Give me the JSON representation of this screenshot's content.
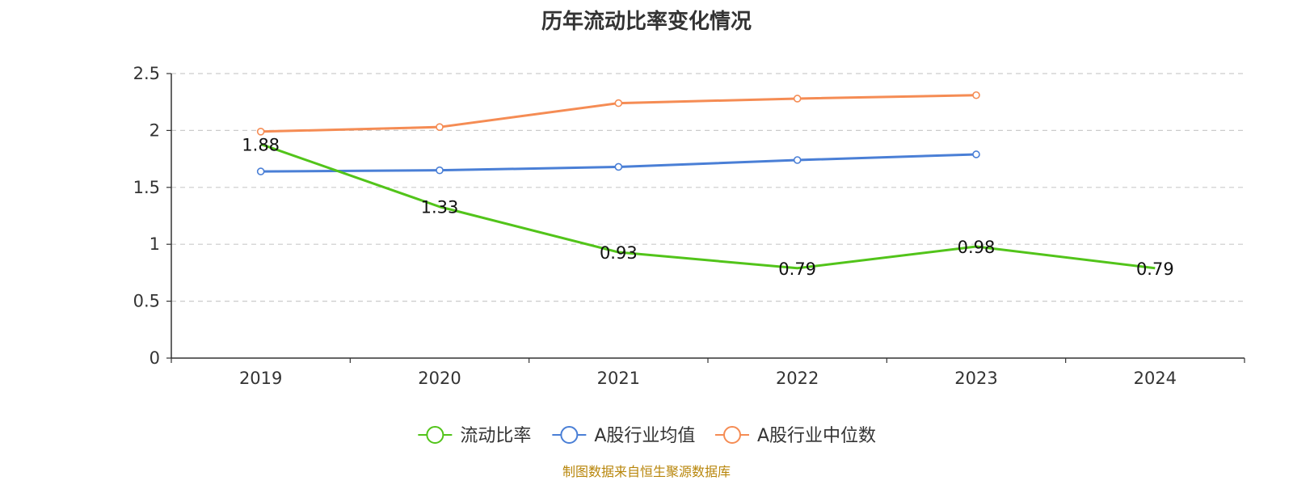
{
  "chart_data": {
    "type": "line",
    "title": "历年流动比率变化情况",
    "categories": [
      "2019",
      "2020",
      "2021",
      "2022",
      "2023",
      "2024"
    ],
    "series": [
      {
        "name": "流动比率",
        "color": "#52c41a",
        "values": [
          1.88,
          1.33,
          0.93,
          0.79,
          0.98,
          0.79
        ],
        "show_labels": true
      },
      {
        "name": "A股行业均值",
        "color": "#4a7fd6",
        "values": [
          1.64,
          1.65,
          1.68,
          1.74,
          1.79,
          null
        ],
        "show_labels": false
      },
      {
        "name": "A股行业中位数",
        "color": "#f58c54",
        "values": [
          1.99,
          2.03,
          2.24,
          2.28,
          2.31,
          null
        ],
        "show_labels": false
      }
    ],
    "data_labels": [
      "1.88",
      "1.33",
      "0.93",
      "0.79",
      "0.98",
      "0.79"
    ],
    "yticks": [
      "0",
      "0.5",
      "1",
      "1.5",
      "2",
      "2.5"
    ],
    "ylim": [
      0,
      2.5
    ],
    "grid": true,
    "legend_position": "bottom-center",
    "source": "制图数据来自恒生聚源数据库"
  }
}
